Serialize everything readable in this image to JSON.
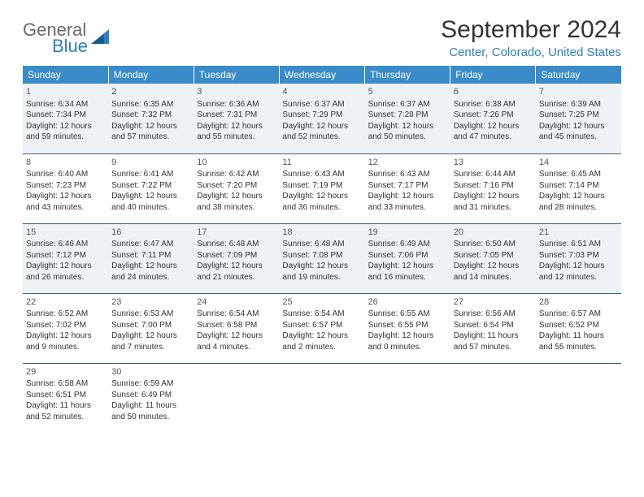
{
  "logo": {
    "line1": "General",
    "line2": "Blue"
  },
  "title": "September 2024",
  "location": "Center, Colorado, United States",
  "header_bg": "#3a8bc9",
  "weekdays": [
    "Sunday",
    "Monday",
    "Tuesday",
    "Wednesday",
    "Thursday",
    "Friday",
    "Saturday"
  ],
  "days": [
    {
      "n": "1",
      "sr": "Sunrise: 6:34 AM",
      "ss": "Sunset: 7:34 PM",
      "dl1": "Daylight: 12 hours",
      "dl2": "and 59 minutes."
    },
    {
      "n": "2",
      "sr": "Sunrise: 6:35 AM",
      "ss": "Sunset: 7:32 PM",
      "dl1": "Daylight: 12 hours",
      "dl2": "and 57 minutes."
    },
    {
      "n": "3",
      "sr": "Sunrise: 6:36 AM",
      "ss": "Sunset: 7:31 PM",
      "dl1": "Daylight: 12 hours",
      "dl2": "and 55 minutes."
    },
    {
      "n": "4",
      "sr": "Sunrise: 6:37 AM",
      "ss": "Sunset: 7:29 PM",
      "dl1": "Daylight: 12 hours",
      "dl2": "and 52 minutes."
    },
    {
      "n": "5",
      "sr": "Sunrise: 6:37 AM",
      "ss": "Sunset: 7:28 PM",
      "dl1": "Daylight: 12 hours",
      "dl2": "and 50 minutes."
    },
    {
      "n": "6",
      "sr": "Sunrise: 6:38 AM",
      "ss": "Sunset: 7:26 PM",
      "dl1": "Daylight: 12 hours",
      "dl2": "and 47 minutes."
    },
    {
      "n": "7",
      "sr": "Sunrise: 6:39 AM",
      "ss": "Sunset: 7:25 PM",
      "dl1": "Daylight: 12 hours",
      "dl2": "and 45 minutes."
    },
    {
      "n": "8",
      "sr": "Sunrise: 6:40 AM",
      "ss": "Sunset: 7:23 PM",
      "dl1": "Daylight: 12 hours",
      "dl2": "and 43 minutes."
    },
    {
      "n": "9",
      "sr": "Sunrise: 6:41 AM",
      "ss": "Sunset: 7:22 PM",
      "dl1": "Daylight: 12 hours",
      "dl2": "and 40 minutes."
    },
    {
      "n": "10",
      "sr": "Sunrise: 6:42 AM",
      "ss": "Sunset: 7:20 PM",
      "dl1": "Daylight: 12 hours",
      "dl2": "and 38 minutes."
    },
    {
      "n": "11",
      "sr": "Sunrise: 6:43 AM",
      "ss": "Sunset: 7:19 PM",
      "dl1": "Daylight: 12 hours",
      "dl2": "and 36 minutes."
    },
    {
      "n": "12",
      "sr": "Sunrise: 6:43 AM",
      "ss": "Sunset: 7:17 PM",
      "dl1": "Daylight: 12 hours",
      "dl2": "and 33 minutes."
    },
    {
      "n": "13",
      "sr": "Sunrise: 6:44 AM",
      "ss": "Sunset: 7:16 PM",
      "dl1": "Daylight: 12 hours",
      "dl2": "and 31 minutes."
    },
    {
      "n": "14",
      "sr": "Sunrise: 6:45 AM",
      "ss": "Sunset: 7:14 PM",
      "dl1": "Daylight: 12 hours",
      "dl2": "and 28 minutes."
    },
    {
      "n": "15",
      "sr": "Sunrise: 6:46 AM",
      "ss": "Sunset: 7:12 PM",
      "dl1": "Daylight: 12 hours",
      "dl2": "and 26 minutes."
    },
    {
      "n": "16",
      "sr": "Sunrise: 6:47 AM",
      "ss": "Sunset: 7:11 PM",
      "dl1": "Daylight: 12 hours",
      "dl2": "and 24 minutes."
    },
    {
      "n": "17",
      "sr": "Sunrise: 6:48 AM",
      "ss": "Sunset: 7:09 PM",
      "dl1": "Daylight: 12 hours",
      "dl2": "and 21 minutes."
    },
    {
      "n": "18",
      "sr": "Sunrise: 6:48 AM",
      "ss": "Sunset: 7:08 PM",
      "dl1": "Daylight: 12 hours",
      "dl2": "and 19 minutes."
    },
    {
      "n": "19",
      "sr": "Sunrise: 6:49 AM",
      "ss": "Sunset: 7:06 PM",
      "dl1": "Daylight: 12 hours",
      "dl2": "and 16 minutes."
    },
    {
      "n": "20",
      "sr": "Sunrise: 6:50 AM",
      "ss": "Sunset: 7:05 PM",
      "dl1": "Daylight: 12 hours",
      "dl2": "and 14 minutes."
    },
    {
      "n": "21",
      "sr": "Sunrise: 6:51 AM",
      "ss": "Sunset: 7:03 PM",
      "dl1": "Daylight: 12 hours",
      "dl2": "and 12 minutes."
    },
    {
      "n": "22",
      "sr": "Sunrise: 6:52 AM",
      "ss": "Sunset: 7:02 PM",
      "dl1": "Daylight: 12 hours",
      "dl2": "and 9 minutes."
    },
    {
      "n": "23",
      "sr": "Sunrise: 6:53 AM",
      "ss": "Sunset: 7:00 PM",
      "dl1": "Daylight: 12 hours",
      "dl2": "and 7 minutes."
    },
    {
      "n": "24",
      "sr": "Sunrise: 6:54 AM",
      "ss": "Sunset: 6:58 PM",
      "dl1": "Daylight: 12 hours",
      "dl2": "and 4 minutes."
    },
    {
      "n": "25",
      "sr": "Sunrise: 6:54 AM",
      "ss": "Sunset: 6:57 PM",
      "dl1": "Daylight: 12 hours",
      "dl2": "and 2 minutes."
    },
    {
      "n": "26",
      "sr": "Sunrise: 6:55 AM",
      "ss": "Sunset: 6:55 PM",
      "dl1": "Daylight: 12 hours",
      "dl2": "and 0 minutes."
    },
    {
      "n": "27",
      "sr": "Sunrise: 6:56 AM",
      "ss": "Sunset: 6:54 PM",
      "dl1": "Daylight: 11 hours",
      "dl2": "and 57 minutes."
    },
    {
      "n": "28",
      "sr": "Sunrise: 6:57 AM",
      "ss": "Sunset: 6:52 PM",
      "dl1": "Daylight: 11 hours",
      "dl2": "and 55 minutes."
    },
    {
      "n": "29",
      "sr": "Sunrise: 6:58 AM",
      "ss": "Sunset: 6:51 PM",
      "dl1": "Daylight: 11 hours",
      "dl2": "and 52 minutes."
    },
    {
      "n": "30",
      "sr": "Sunrise: 6:59 AM",
      "ss": "Sunset: 6:49 PM",
      "dl1": "Daylight: 11 hours",
      "dl2": "and 50 minutes."
    }
  ]
}
